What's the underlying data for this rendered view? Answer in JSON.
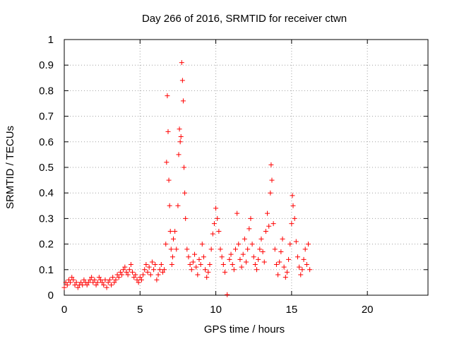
{
  "chart_data": {
    "type": "scatter",
    "title": "Day 266 of 2016, SRMTID for receiver ctwn",
    "xlabel": "GPS time / hours",
    "ylabel": "SRMTID / TECUs",
    "xlim": [
      0,
      24
    ],
    "ylim": [
      0,
      1
    ],
    "xticks": [
      0,
      5,
      10,
      15,
      20
    ],
    "xtick_labels": [
      "0",
      "5",
      "10",
      "15",
      "20"
    ],
    "yticks": [
      0,
      0.1,
      0.2,
      0.3,
      0.4,
      0.5,
      0.6,
      0.7,
      0.8,
      0.9,
      1
    ],
    "ytick_labels": [
      "0",
      "0.1",
      "0.2",
      "0.3",
      "0.4",
      "0.5",
      "0.6",
      "0.7",
      "0.8",
      "0.9",
      "1"
    ],
    "grid": true,
    "marker": "plus",
    "color": "#ff0000",
    "series": [
      {
        "name": "SRMTID",
        "x": [
          0.0,
          0.1,
          0.2,
          0.3,
          0.4,
          0.5,
          0.6,
          0.7,
          0.8,
          0.9,
          1.0,
          1.1,
          1.2,
          1.3,
          1.4,
          1.5,
          1.6,
          1.7,
          1.8,
          1.9,
          2.0,
          2.1,
          2.2,
          2.3,
          2.4,
          2.5,
          2.6,
          2.7,
          2.8,
          2.9,
          3.0,
          3.1,
          3.2,
          3.3,
          3.4,
          3.5,
          3.6,
          3.7,
          3.8,
          3.9,
          4.0,
          4.1,
          4.2,
          4.3,
          4.4,
          4.5,
          4.6,
          4.7,
          4.8,
          4.9,
          5.0,
          5.1,
          5.2,
          5.3,
          5.4,
          5.5,
          5.6,
          5.7,
          5.8,
          5.9,
          6.0,
          6.1,
          6.2,
          6.3,
          6.4,
          6.5,
          6.6,
          6.7,
          6.75,
          6.8,
          6.85,
          6.9,
          6.95,
          7.0,
          7.05,
          7.1,
          7.15,
          7.2,
          7.3,
          7.4,
          7.5,
          7.55,
          7.6,
          7.65,
          7.7,
          7.75,
          7.8,
          7.85,
          7.9,
          7.95,
          8.0,
          8.1,
          8.2,
          8.3,
          8.4,
          8.5,
          8.6,
          8.7,
          8.8,
          8.9,
          9.0,
          9.1,
          9.2,
          9.3,
          9.4,
          9.5,
          9.6,
          9.7,
          9.8,
          9.9,
          10.0,
          10.1,
          10.2,
          10.3,
          10.4,
          10.5,
          10.6,
          10.75,
          10.9,
          11.0,
          11.1,
          11.2,
          11.3,
          11.4,
          11.5,
          11.6,
          11.7,
          11.8,
          11.9,
          12.0,
          12.1,
          12.2,
          12.3,
          12.4,
          12.5,
          12.6,
          12.7,
          12.8,
          12.9,
          13.0,
          13.1,
          13.2,
          13.3,
          13.4,
          13.5,
          13.6,
          13.65,
          13.7,
          13.8,
          13.9,
          14.0,
          14.1,
          14.2,
          14.3,
          14.4,
          14.5,
          14.6,
          14.7,
          14.8,
          14.9,
          15.0,
          15.05,
          15.1,
          15.2,
          15.3,
          15.4,
          15.5,
          15.6,
          15.7,
          15.8,
          15.9,
          16.0,
          16.1,
          16.2
        ],
        "y": [
          0.03,
          0.05,
          0.04,
          0.06,
          0.05,
          0.07,
          0.06,
          0.04,
          0.05,
          0.03,
          0.04,
          0.05,
          0.04,
          0.06,
          0.05,
          0.04,
          0.05,
          0.06,
          0.07,
          0.05,
          0.06,
          0.04,
          0.05,
          0.07,
          0.06,
          0.05,
          0.04,
          0.06,
          0.03,
          0.05,
          0.06,
          0.04,
          0.07,
          0.05,
          0.06,
          0.08,
          0.07,
          0.09,
          0.08,
          0.1,
          0.11,
          0.09,
          0.08,
          0.1,
          0.12,
          0.09,
          0.07,
          0.08,
          0.06,
          0.05,
          0.07,
          0.06,
          0.08,
          0.1,
          0.12,
          0.09,
          0.11,
          0.08,
          0.13,
          0.1,
          0.12,
          0.06,
          0.08,
          0.1,
          0.12,
          0.09,
          0.1,
          0.2,
          0.52,
          0.78,
          0.64,
          0.45,
          0.35,
          0.25,
          0.18,
          0.12,
          0.15,
          0.22,
          0.25,
          0.18,
          0.35,
          0.55,
          0.65,
          0.6,
          0.62,
          0.91,
          0.84,
          0.76,
          0.5,
          0.4,
          0.3,
          0.18,
          0.15,
          0.12,
          0.1,
          0.13,
          0.16,
          0.11,
          0.08,
          0.14,
          0.12,
          0.2,
          0.15,
          0.1,
          0.07,
          0.09,
          0.12,
          0.18,
          0.24,
          0.28,
          0.34,
          0.3,
          0.25,
          0.18,
          0.15,
          0.12,
          0.09,
          0.002,
          0.14,
          0.16,
          0.12,
          0.1,
          0.18,
          0.32,
          0.2,
          0.14,
          0.11,
          0.16,
          0.22,
          0.13,
          0.18,
          0.26,
          0.3,
          0.2,
          0.15,
          0.12,
          0.1,
          0.14,
          0.18,
          0.22,
          0.17,
          0.13,
          0.25,
          0.32,
          0.27,
          0.4,
          0.51,
          0.45,
          0.28,
          0.18,
          0.12,
          0.08,
          0.13,
          0.17,
          0.22,
          0.11,
          0.07,
          0.09,
          0.14,
          0.2,
          0.28,
          0.39,
          0.35,
          0.3,
          0.21,
          0.15,
          0.11,
          0.08,
          0.1,
          0.14,
          0.18,
          0.12,
          0.2,
          0.1
        ]
      }
    ]
  }
}
